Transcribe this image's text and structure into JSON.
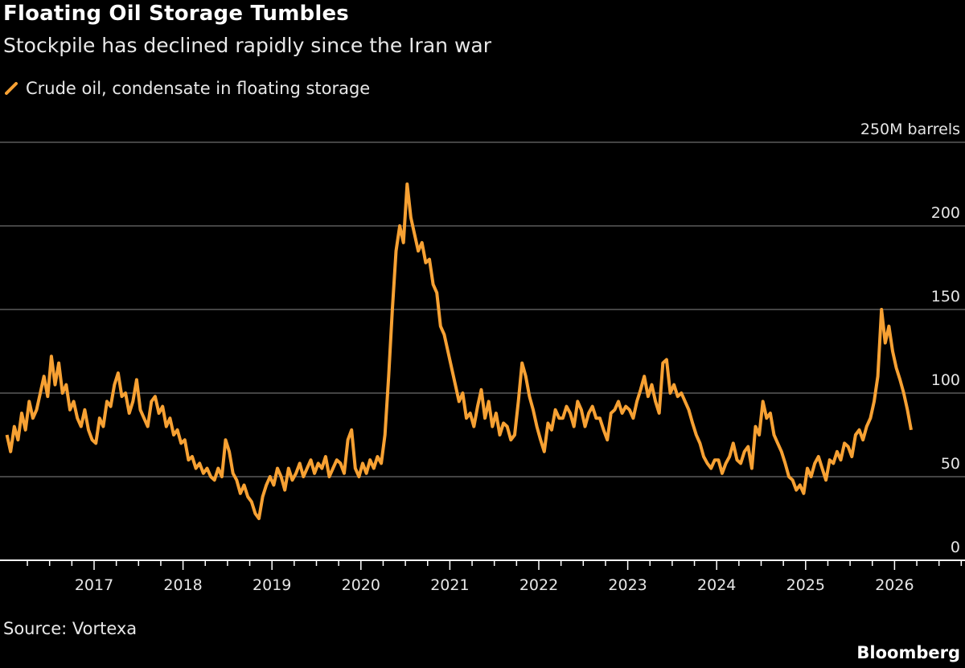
{
  "title": "Floating Oil Storage Tumbles",
  "subtitle": "Stockpile has declined rapidly since the Iran war",
  "source": "Source: Vortexa",
  "brand": "Bloomberg",
  "chart_data": {
    "type": "line",
    "title": "Floating Oil Storage Tumbles",
    "subtitle": "Stockpile has declined rapidly since the Iran war",
    "ylabel": "250M barrels",
    "ylim": [
      0,
      250
    ],
    "yticks": [
      0,
      50,
      100,
      150,
      200,
      250
    ],
    "ytick_labels": [
      "0",
      "50",
      "100",
      "150",
      "200",
      "250M barrels"
    ],
    "xlim": [
      "2016-01-01",
      "2026-06-30"
    ],
    "xtick_labels": [
      "2017",
      "2018",
      "2019",
      "2020",
      "2021",
      "2022",
      "2023",
      "2024",
      "2025",
      "2026"
    ],
    "grid": "horizontal",
    "legend_position": "top-left",
    "colors": {
      "background": "#000000",
      "line": "#f7a133",
      "grid": "#5a5a5a",
      "axis": "#ffffff"
    },
    "series": [
      {
        "name": "Crude oil, condensate in floating storage",
        "color": "#f7a133",
        "values_by_month": {
          "2016-01": [
            75,
            65
          ],
          "2016-02": [
            80,
            72
          ],
          "2016-03": [
            88,
            78
          ],
          "2016-04": [
            95,
            85
          ],
          "2016-05": [
            90,
            100
          ],
          "2016-06": [
            110,
            98
          ],
          "2016-07": [
            122,
            105
          ],
          "2016-08": [
            118,
            100
          ],
          "2016-09": [
            105,
            90
          ],
          "2016-10": [
            95,
            85
          ],
          "2016-11": [
            80,
            90
          ],
          "2016-12": [
            78,
            72
          ],
          "2017-01": [
            70,
            85
          ],
          "2017-02": [
            80,
            95
          ],
          "2017-03": [
            92,
            105
          ],
          "2017-04": [
            112,
            98
          ],
          "2017-05": [
            100,
            88
          ],
          "2017-06": [
            95,
            108
          ],
          "2017-07": [
            90,
            85
          ],
          "2017-08": [
            80,
            95
          ],
          "2017-09": [
            98,
            88
          ],
          "2017-10": [
            92,
            80
          ],
          "2017-11": [
            85,
            75
          ],
          "2017-12": [
            78,
            70
          ],
          "2018-01": [
            72,
            60
          ],
          "2018-02": [
            62,
            55
          ],
          "2018-03": [
            58,
            52
          ],
          "2018-04": [
            55,
            50
          ],
          "2018-05": [
            48,
            55
          ],
          "2018-06": [
            50,
            72
          ],
          "2018-07": [
            65,
            52
          ],
          "2018-08": [
            48,
            40
          ],
          "2018-09": [
            45,
            38
          ],
          "2018-10": [
            35,
            28
          ],
          "2018-11": [
            25,
            38
          ],
          "2018-12": [
            45,
            50
          ],
          "2019-01": [
            45,
            55
          ],
          "2019-02": [
            50,
            42
          ],
          "2019-03": [
            55,
            48
          ],
          "2019-04": [
            52,
            58
          ],
          "2019-05": [
            50,
            55
          ],
          "2019-06": [
            60,
            52
          ],
          "2019-07": [
            58,
            55
          ],
          "2019-08": [
            62,
            50
          ],
          "2019-09": [
            55,
            60
          ],
          "2019-10": [
            58,
            52
          ],
          "2019-11": [
            72,
            78
          ],
          "2019-12": [
            55,
            50
          ],
          "2020-01": [
            58,
            52
          ],
          "2020-02": [
            60,
            55
          ],
          "2020-03": [
            62,
            58
          ],
          "2020-04": [
            75,
            110
          ],
          "2020-05": [
            150,
            185
          ],
          "2020-06": [
            200,
            190
          ],
          "2020-07": [
            225,
            205
          ],
          "2020-08": [
            195,
            185
          ],
          "2020-09": [
            190,
            178
          ],
          "2020-10": [
            180,
            165
          ],
          "2020-11": [
            160,
            140
          ],
          "2020-12": [
            135,
            125
          ],
          "2021-01": [
            115,
            105
          ],
          "2021-02": [
            95,
            100
          ],
          "2021-03": [
            85,
            88
          ],
          "2021-04": [
            80,
            92
          ],
          "2021-05": [
            102,
            85
          ],
          "2021-06": [
            95,
            80
          ],
          "2021-07": [
            88,
            75
          ],
          "2021-08": [
            82,
            80
          ],
          "2021-09": [
            72,
            75
          ],
          "2021-10": [
            95,
            118
          ],
          "2021-11": [
            110,
            98
          ],
          "2021-12": [
            90,
            80
          ],
          "2022-01": [
            72,
            65
          ],
          "2022-02": [
            82,
            78
          ],
          "2022-03": [
            90,
            85
          ],
          "2022-04": [
            85,
            92
          ],
          "2022-05": [
            88,
            80
          ],
          "2022-06": [
            95,
            90
          ],
          "2022-07": [
            80,
            88
          ],
          "2022-08": [
            92,
            85
          ],
          "2022-09": [
            85,
            78
          ],
          "2022-10": [
            72,
            88
          ],
          "2022-11": [
            90,
            95
          ],
          "2022-12": [
            88,
            92
          ],
          "2023-01": [
            90,
            85
          ],
          "2023-02": [
            95,
            102
          ],
          "2023-03": [
            110,
            98
          ],
          "2023-04": [
            105,
            95
          ],
          "2023-05": [
            88,
            118
          ],
          "2023-06": [
            120,
            100
          ],
          "2023-07": [
            105,
            98
          ],
          "2023-08": [
            100,
            95
          ],
          "2023-09": [
            90,
            82
          ],
          "2023-10": [
            75,
            70
          ],
          "2023-11": [
            62,
            58
          ],
          "2023-12": [
            55,
            60
          ],
          "2024-01": [
            60,
            52
          ],
          "2024-02": [
            58,
            62
          ],
          "2024-03": [
            70,
            60
          ],
          "2024-04": [
            58,
            65
          ],
          "2024-05": [
            68,
            55
          ],
          "2024-06": [
            80,
            75
          ],
          "2024-07": [
            95,
            85
          ],
          "2024-08": [
            88,
            75
          ],
          "2024-09": [
            70,
            65
          ],
          "2024-10": [
            58,
            50
          ],
          "2024-11": [
            48,
            42
          ],
          "2024-12": [
            45,
            40
          ],
          "2025-01": [
            55,
            50
          ],
          "2025-02": [
            58,
            62
          ],
          "2025-03": [
            55,
            48
          ],
          "2025-04": [
            60,
            58
          ],
          "2025-05": [
            65,
            60
          ],
          "2025-06": [
            70,
            68
          ],
          "2025-07": [
            62,
            75
          ],
          "2025-08": [
            78,
            72
          ],
          "2025-09": [
            80,
            85
          ],
          "2025-10": [
            95,
            110
          ],
          "2025-11": [
            150,
            130
          ],
          "2025-12": [
            140,
            125
          ],
          "2026-01": [
            115,
            108
          ],
          "2026-02": [
            100,
            90
          ],
          "2026-03": [
            78
          ]
        }
      }
    ]
  }
}
